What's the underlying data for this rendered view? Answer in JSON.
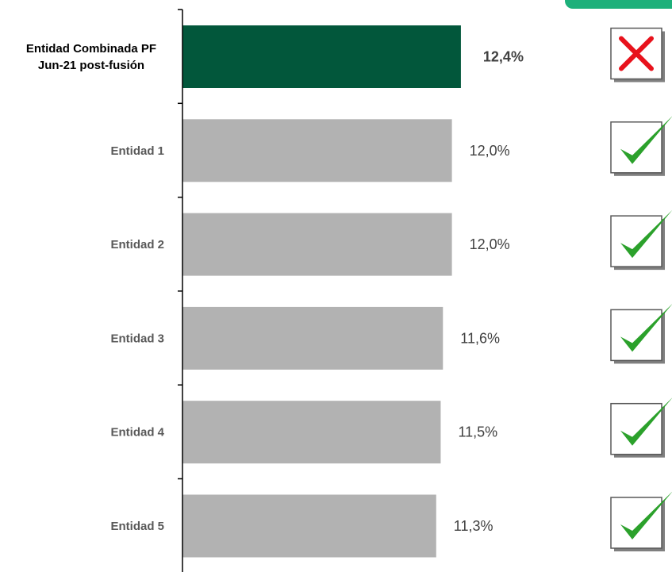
{
  "chart_data": {
    "type": "bar",
    "orientation": "horizontal",
    "categories": [
      [
        "Entidad Combinada PF",
        "Jun-21 post-fusión"
      ],
      [
        "Entidad 1"
      ],
      [
        "Entidad 2"
      ],
      [
        "Entidad 3"
      ],
      [
        "Entidad 4"
      ],
      [
        "Entidad 5"
      ]
    ],
    "values": [
      12.4,
      12.0,
      12.0,
      11.6,
      11.5,
      11.3
    ],
    "value_labels": [
      "12,4%",
      "12,0%",
      "12,0%",
      "11,6%",
      "11,5%",
      "11,3%"
    ],
    "status": [
      "cross",
      "check",
      "check",
      "check",
      "check",
      "check"
    ],
    "highlight_index": 0,
    "colors": {
      "highlight_bar": "#02573B",
      "bar": "#B2B2B2",
      "axis": "#000000",
      "check": "#2BA12B",
      "cross": "#E8121C",
      "header_tab": "#1DB07A"
    },
    "grid": false
  }
}
